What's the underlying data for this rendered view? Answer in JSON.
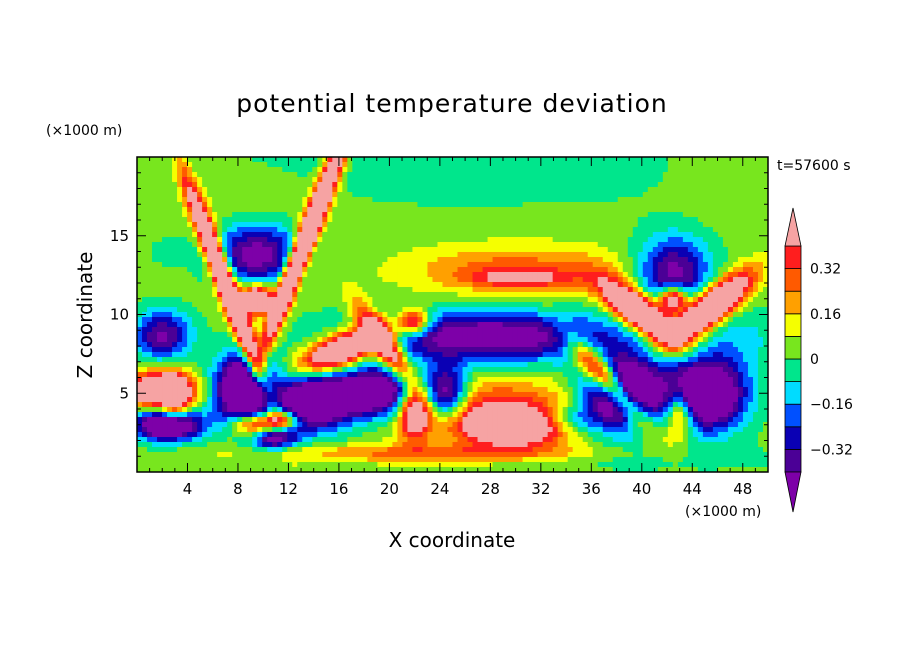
{
  "chart_data": {
    "type": "heatmap",
    "title": "potential temperature deviation",
    "xlabel": "X coordinate",
    "ylabel": "Z coordinate",
    "x_unit": "(×1000 m)",
    "y_unit": "(×1000 m)",
    "time_label": "t=57600 s",
    "xlim": [
      0,
      50
    ],
    "ylim": [
      0,
      20
    ],
    "x_ticks": [
      4,
      8,
      12,
      16,
      20,
      24,
      28,
      32,
      36,
      40,
      44,
      48
    ],
    "y_ticks": [
      5,
      10,
      15
    ],
    "colorbar": {
      "levels": [
        -0.48,
        -0.4,
        -0.32,
        -0.24,
        -0.16,
        -0.08,
        0,
        0.08,
        0.16,
        0.24,
        0.32,
        0.4
      ],
      "labels": [
        "0.32",
        "0.16",
        "0",
        "−0.16",
        "−0.32"
      ],
      "label_values": [
        0.32,
        0.16,
        0,
        -0.16,
        -0.32
      ],
      "colors": [
        "#7d00a8",
        "#4b0096",
        "#0a00b4",
        "#0050ff",
        "#00dcff",
        "#00e68c",
        "#78e61e",
        "#f5ff00",
        "#ffa000",
        "#ff5a00",
        "#ff1e1e",
        "#f6a3a3"
      ]
    }
  }
}
